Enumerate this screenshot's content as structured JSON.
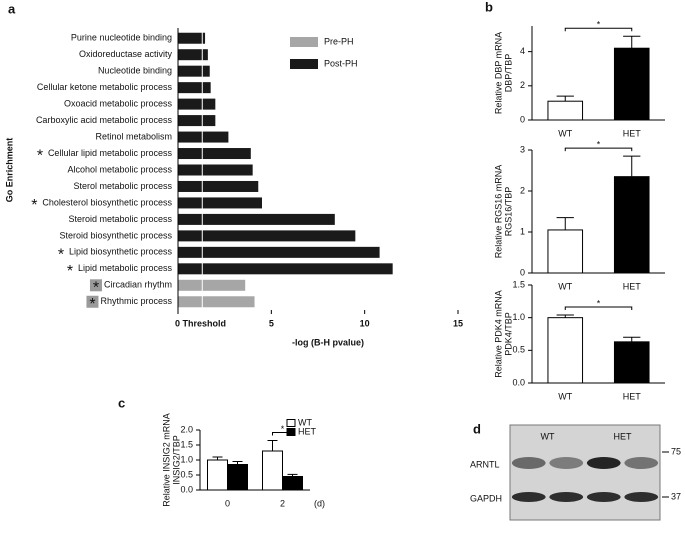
{
  "chart_data": [
    {
      "panel": "a",
      "type": "barh",
      "ylabel": "Go Enrichment",
      "xlabel": "-log (B-H pvalue)",
      "categories": [
        "Purine nucleotide binding",
        "Oxidoreductase activity",
        "Nucleotide binding",
        "Cellular ketone metabolic process",
        "Oxoacid metabolic process",
        "Carboxylic acid metabolic process",
        "Retinol metabolism",
        "Cellular lipid metabolic process",
        "Alcohol metabolic process",
        "Sterol metabolic process",
        "Cholesterol biosynthetic process",
        "Steroid metabolic process",
        "Steroid biosynthetic process",
        "Lipid biosynthetic process",
        "Lipid metabolic process",
        "Circadian rhythm",
        "Rhythmic process"
      ],
      "category_markers": [
        null,
        null,
        null,
        null,
        null,
        null,
        null,
        "*",
        null,
        null,
        "*",
        null,
        null,
        "*",
        "*",
        "*",
        "*"
      ],
      "series": [
        {
          "name": "Pre-PH",
          "color": "#a6a6a6",
          "values": [
            null,
            null,
            null,
            null,
            null,
            null,
            null,
            null,
            null,
            null,
            null,
            null,
            null,
            null,
            null,
            3.6,
            4.1
          ]
        },
        {
          "name": "Post-PH",
          "color": "#1a1a1a",
          "values": [
            1.45,
            1.6,
            1.7,
            1.75,
            2.0,
            2.0,
            2.7,
            3.9,
            4.0,
            4.3,
            4.5,
            8.4,
            9.5,
            10.8,
            11.5,
            null,
            null
          ]
        }
      ],
      "xlim": [
        0,
        15
      ],
      "xticks": [
        {
          "value": 0,
          "label": "0 Threshold"
        },
        5,
        10,
        15
      ],
      "threshold": 1.3
    },
    {
      "panel": "b",
      "type": "bar",
      "ylabel": [
        "Relative DBP mRNA",
        "DBP/TBP"
      ],
      "categories": [
        "WT",
        "HET"
      ],
      "values": [
        1.1,
        4.2
      ],
      "errors": [
        0.3,
        0.7
      ],
      "colors": [
        "#ffffff",
        "#000000"
      ],
      "significance": "*",
      "ylim": [
        0,
        5.5
      ],
      "yticks": [
        0,
        2,
        4
      ]
    },
    {
      "type": "bar",
      "ylabel": [
        "Relative RGS16 mRNA",
        "RGS16/TBP"
      ],
      "categories": [
        "WT",
        "HET"
      ],
      "values": [
        1.05,
        2.35
      ],
      "errors": [
        0.3,
        0.5
      ],
      "colors": [
        "#ffffff",
        "#000000"
      ],
      "significance": "*",
      "ylim": [
        0,
        3
      ],
      "yticks": [
        0,
        1,
        2,
        3
      ]
    },
    {
      "type": "bar",
      "ylabel": [
        "Relative PDK4 mRNA",
        "PDK4/TBP"
      ],
      "categories": [
        "WT",
        "HET"
      ],
      "values": [
        1.0,
        0.63
      ],
      "errors": [
        0.04,
        0.07
      ],
      "colors": [
        "#ffffff",
        "#000000"
      ],
      "significance": "*",
      "ylim": [
        0,
        1.5
      ],
      "yticks": [
        {
          "value": 0,
          "label": "0.0"
        },
        0.5,
        {
          "value": 1,
          "label": "1.0"
        },
        1.5
      ]
    },
    {
      "panel": "c",
      "type": "bar",
      "ylabel": [
        "Relative INSIG2 mRNA",
        "INSIG2/TBP"
      ],
      "categories": [
        "0",
        "2"
      ],
      "xunit": "(d)",
      "series": [
        {
          "name": "WT",
          "color": "#ffffff",
          "values": [
            1.0,
            1.3
          ],
          "errors": [
            0.1,
            0.35
          ]
        },
        {
          "name": "HET",
          "color": "#000000",
          "values": [
            0.85,
            0.45
          ],
          "errors": [
            0.1,
            0.07
          ]
        }
      ],
      "significance": [
        null,
        "*"
      ],
      "ylim": [
        0,
        2
      ],
      "yticks": [
        {
          "value": 0,
          "label": "0.0"
        },
        0.5,
        {
          "value": 1,
          "label": "1.0"
        },
        1.5,
        {
          "value": 2,
          "label": "2.0"
        }
      ]
    },
    {
      "panel": "d",
      "type": "blot",
      "lanes": [
        "WT",
        "HET"
      ],
      "rows": [
        "ARNTL",
        "GAPDH"
      ],
      "markers": [
        "75",
        "37"
      ]
    }
  ]
}
